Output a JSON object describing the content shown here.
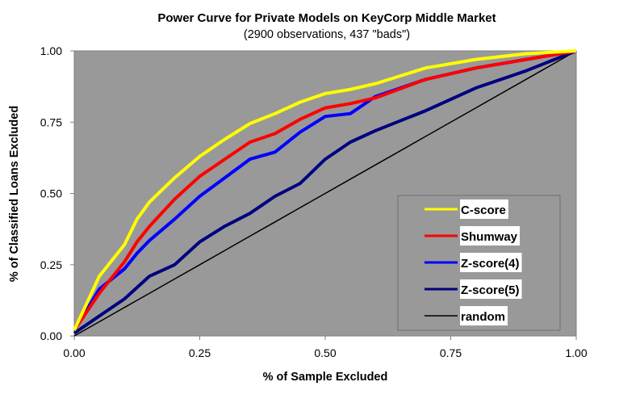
{
  "chart_data": {
    "type": "line",
    "title": "Power Curve for Private Models on KeyCorp Middle Market",
    "subtitle": "(2900 observations, 437 \"bads\")",
    "xlabel": "% of Sample Excluded",
    "ylabel": "% of Classified Loans Excluded",
    "xlim": [
      0,
      1
    ],
    "ylim": [
      0,
      1
    ],
    "x_ticks": [
      "0.00",
      "0.25",
      "0.50",
      "0.75",
      "1.00"
    ],
    "y_ticks": [
      "0.00",
      "0.25",
      "0.50",
      "0.75",
      "1.00"
    ],
    "grid": false,
    "background": "#999999",
    "legend_position": "bottom-right",
    "x": [
      0,
      0.05,
      0.1,
      0.125,
      0.15,
      0.2,
      0.25,
      0.3,
      0.35,
      0.4,
      0.45,
      0.5,
      0.55,
      0.6,
      0.7,
      0.8,
      0.9,
      1.0
    ],
    "series": [
      {
        "name": "C-score",
        "color": "#ffff00",
        "values": [
          0.02,
          0.21,
          0.32,
          0.41,
          0.47,
          0.555,
          0.63,
          0.69,
          0.745,
          0.78,
          0.82,
          0.85,
          0.865,
          0.885,
          0.94,
          0.97,
          0.99,
          1.0
        ]
      },
      {
        "name": "Shumway",
        "color": "#ff0000",
        "values": [
          0.02,
          0.15,
          0.26,
          0.33,
          0.385,
          0.48,
          0.56,
          0.62,
          0.68,
          0.71,
          0.76,
          0.8,
          0.815,
          0.835,
          0.9,
          0.94,
          0.97,
          1.0
        ]
      },
      {
        "name": "Z-score(4)",
        "color": "#0000ff",
        "values": [
          0.02,
          0.165,
          0.235,
          0.29,
          0.335,
          0.41,
          0.49,
          0.555,
          0.62,
          0.645,
          0.715,
          0.77,
          0.78,
          0.84,
          0.9,
          0.94,
          0.97,
          1.0
        ]
      },
      {
        "name": "Z-score(5)",
        "color": "#000080",
        "values": [
          0.01,
          0.07,
          0.13,
          0.17,
          0.21,
          0.25,
          0.33,
          0.385,
          0.43,
          0.49,
          0.535,
          0.62,
          0.68,
          0.72,
          0.79,
          0.87,
          0.93,
          1.0
        ]
      },
      {
        "name": "random",
        "color": "#000000",
        "values": [
          0,
          0.05,
          0.1,
          0.125,
          0.15,
          0.2,
          0.25,
          0.3,
          0.35,
          0.4,
          0.45,
          0.5,
          0.55,
          0.6,
          0.7,
          0.8,
          0.9,
          1.0
        ]
      }
    ]
  }
}
